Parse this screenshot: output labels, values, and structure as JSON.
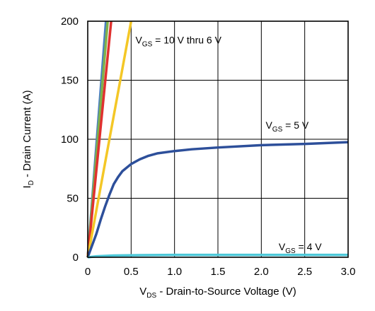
{
  "chart_data": {
    "type": "line",
    "xlabel": {
      "main": "V",
      "sub": "DS",
      "rest": " - Drain-to-Source Voltage (V)"
    },
    "ylabel": {
      "main": "I",
      "sub": "D",
      "rest": " - Drain Current (A)"
    },
    "xlim": [
      0,
      3.0
    ],
    "ylim": [
      0,
      200
    ],
    "xticks": [
      0,
      0.5,
      1.0,
      1.5,
      2.0,
      2.5,
      3.0
    ],
    "xtick_labels": [
      "0",
      "0.5",
      "1.0",
      "1.5",
      "2.0",
      "2.5",
      "3.0"
    ],
    "yticks": [
      0,
      50,
      100,
      150,
      200
    ],
    "ytick_labels": [
      "0",
      "50",
      "100",
      "150",
      "200"
    ],
    "grid": true,
    "series": [
      {
        "color": "#4a7fc1",
        "x": [
          0,
          0.21
        ],
        "y": [
          0,
          200
        ]
      },
      {
        "color": "#7fb24a",
        "x": [
          0,
          0.23
        ],
        "y": [
          0,
          200
        ]
      },
      {
        "color": "#e0312f",
        "x": [
          0,
          0.27
        ],
        "y": [
          0,
          200
        ]
      },
      {
        "color": "#f4c726",
        "x": [
          0,
          0.5
        ],
        "y": [
          0,
          200
        ]
      },
      {
        "color": "#2d4f9a",
        "x": [
          0,
          0.05,
          0.1,
          0.15,
          0.2,
          0.25,
          0.3,
          0.35,
          0.4,
          0.5,
          0.6,
          0.7,
          0.8,
          1.0,
          1.2,
          1.5,
          2.0,
          2.5,
          3.0
        ],
        "y": [
          0,
          10,
          20,
          32,
          43,
          53,
          62,
          68,
          73,
          79,
          83,
          86,
          88,
          90,
          91.5,
          93,
          95,
          96,
          97.5
        ]
      },
      {
        "color": "#4ec8d8",
        "x": [
          0,
          0.1,
          0.3,
          0.6,
          1.0,
          1.5,
          2.0,
          2.5,
          3.0
        ],
        "y": [
          0,
          0.8,
          1.5,
          1.8,
          2.0,
          2.0,
          2.0,
          2.0,
          2.0
        ]
      }
    ],
    "annotations": [
      {
        "main": "V",
        "sub": "GS",
        "rest": " = 10 V thru 6 V",
        "x": 0.55,
        "y": 184
      },
      {
        "main": "V",
        "sub": "GS",
        "rest": " = 5 V",
        "x": 2.05,
        "y": 112
      },
      {
        "main": "V",
        "sub": "GS",
        "rest": " = 4 V",
        "x": 2.2,
        "y": 9
      }
    ]
  }
}
